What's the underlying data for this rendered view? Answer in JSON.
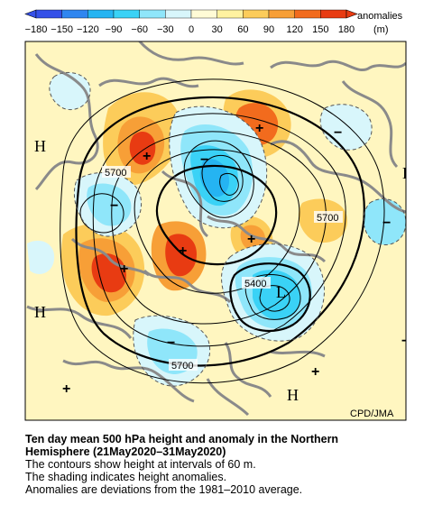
{
  "colorbar": {
    "ticks": [
      "−180",
      "−150",
      "−120",
      "−90",
      "−60",
      "−30",
      "0",
      "30",
      "60",
      "90",
      "120",
      "150",
      "180"
    ],
    "label_line1": "anomalies",
    "label_line2": "(m)",
    "colors": [
      "#3550e8",
      "#2f86f0",
      "#25b4f2",
      "#3ad2f6",
      "#8fe6fa",
      "#d8f6fb",
      "#fffbd6",
      "#fff2a0",
      "#fccc5a",
      "#f79f37",
      "#f26b1d",
      "#e83b12"
    ]
  },
  "map": {
    "labels": {
      "H": "H",
      "L": "L",
      "plus": "+",
      "minus": "−"
    },
    "contour_labels": [
      "5700",
      "5700",
      "5400",
      "5700"
    ],
    "credit": "CPD/JMA"
  },
  "caption": {
    "title_line1": "Ten day mean 500 hPa height and anomaly in the Northern",
    "title_line2": "Hemisphere (21May2020–31May2020)",
    "line3": "The contours show height at intervals of 60 m.",
    "line4": "The shading indicates height anomalies.",
    "line5": "Anomalies are deviations from the 1981–2010 average."
  }
}
